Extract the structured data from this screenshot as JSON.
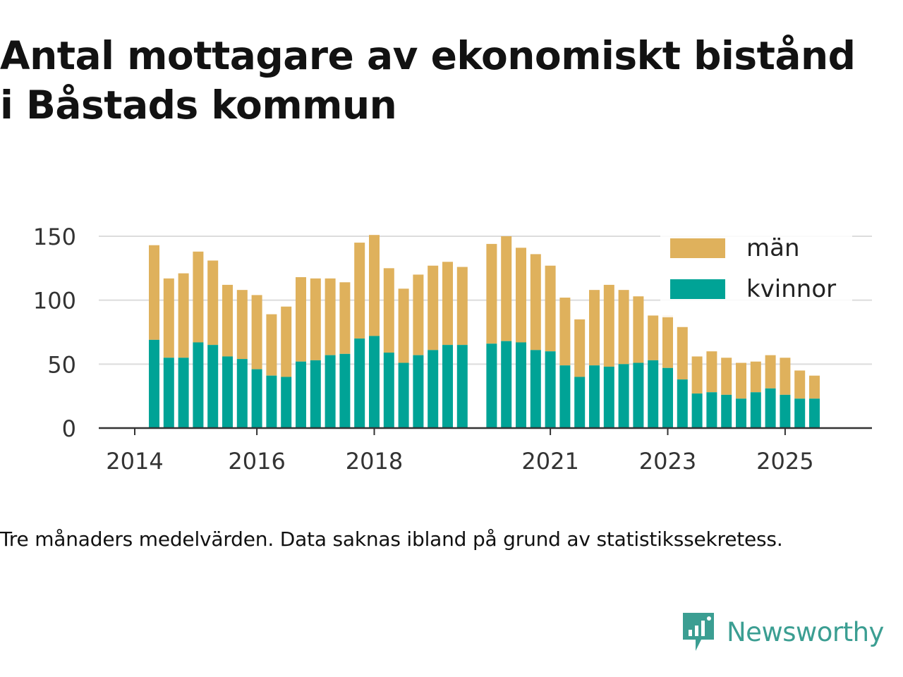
{
  "title": {
    "line1": "Antal mottagare av ekonomiskt bistånd",
    "line2": "i Båstads kommun"
  },
  "caption": "Tre månaders medelvärden. Data saknas ibland på grund av statistikssekretess.",
  "brand": {
    "name": "Newsworthy",
    "icon": "newsworthy-logo-icon",
    "color": "#3b9e92"
  },
  "chart_data": {
    "type": "bar",
    "stacked": true,
    "x_tick_labels": [
      "2014",
      "2016",
      "2018",
      "2021",
      "2023",
      "2025"
    ],
    "ylim": [
      0,
      150
    ],
    "y_ticks": [
      0,
      50,
      100,
      150
    ],
    "grid": true,
    "legend_position": "top-right",
    "categories": [
      "2014-Q2",
      "2014-Q3",
      "2014-Q4",
      "2015-Q1",
      "2015-Q2",
      "2015-Q3",
      "2015-Q4",
      "2016-Q1",
      "2016-Q2",
      "2016-Q3",
      "2016-Q4",
      "2017-Q1",
      "2017-Q2",
      "2017-Q3",
      "2017-Q4",
      "2018-Q1",
      "2018-Q2",
      "2018-Q3",
      "2018-Q4",
      "2019-Q1",
      "2019-Q2",
      "2019-Q3",
      "2020-Q1",
      "2020-Q2",
      "2020-Q3",
      "2020-Q4",
      "2021-Q1",
      "2021-Q2",
      "2021-Q3",
      "2021-Q4",
      "2022-Q1",
      "2022-Q2",
      "2022-Q3",
      "2022-Q4",
      "2023-Q1",
      "2023-Q2",
      "2023-Q3",
      "2023-Q4",
      "2024-Q1",
      "2024-Q2",
      "2024-Q3",
      "2024-Q4",
      "2025-Q1",
      "2025-Q2",
      "2025-Q3"
    ],
    "series": [
      {
        "name": "kvinnor",
        "color": "#00a396",
        "values": [
          69,
          55,
          55,
          67,
          65,
          56,
          54,
          46,
          41,
          40,
          52,
          53,
          57,
          58,
          70,
          72,
          59,
          51,
          57,
          61,
          65,
          65,
          66,
          68,
          67,
          61,
          60,
          49,
          40,
          49,
          48,
          50,
          51,
          53,
          47,
          38,
          27,
          28,
          26,
          23,
          28,
          31,
          26,
          23,
          23
        ]
      },
      {
        "name": "män",
        "color": "#dfb15c",
        "values": [
          74,
          62,
          66,
          71,
          66,
          56,
          54,
          58,
          48,
          55,
          66,
          64,
          60,
          56,
          75,
          79,
          66,
          58,
          63,
          66,
          65,
          61,
          78,
          82,
          74,
          75,
          67,
          53,
          45,
          59,
          64,
          58,
          52,
          35,
          41,
          41,
          29,
          32,
          29,
          28,
          24,
          26,
          29,
          22,
          18
        ]
      }
    ]
  }
}
